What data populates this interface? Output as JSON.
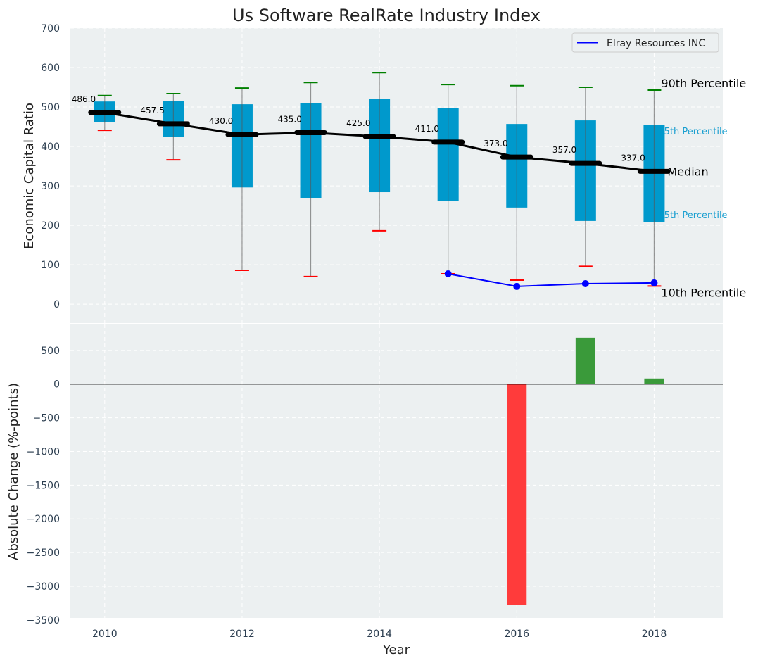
{
  "chart_data": [
    {
      "type": "box",
      "title": "Us Software RealRate Industry Index",
      "xlabel": "",
      "ylabel": "Economic Capital Ratio",
      "xlim": [
        2009.5,
        2019
      ],
      "ylim": [
        -48,
        700
      ],
      "yticks": [
        0,
        100,
        200,
        300,
        400,
        500,
        600,
        700
      ],
      "grid": true,
      "boxes": [
        {
          "year": 2010,
          "p10": 441,
          "p25": 462,
          "median": 486.0,
          "p75": 514,
          "p90": 529,
          "label": "486.0"
        },
        {
          "year": 2011,
          "p10": 366,
          "p25": 425,
          "median": 457.5,
          "p75": 516,
          "p90": 534,
          "label": "457.5"
        },
        {
          "year": 2012,
          "p10": 86,
          "p25": 296,
          "median": 430.0,
          "p75": 507,
          "p90": 548,
          "label": "430.0"
        },
        {
          "year": 2013,
          "p10": 70,
          "p25": 268,
          "median": 435.0,
          "p75": 509,
          "p90": 562,
          "label": "435.0"
        },
        {
          "year": 2014,
          "p10": 186,
          "p25": 284,
          "median": 425.0,
          "p75": 521,
          "p90": 587,
          "label": "425.0"
        },
        {
          "year": 2015,
          "p10": 77,
          "p25": 262,
          "median": 411.0,
          "p75": 498,
          "p90": 557,
          "label": "411.0"
        },
        {
          "year": 2016,
          "p10": 61,
          "p25": 245,
          "median": 373.0,
          "p75": 457,
          "p90": 554,
          "label": "373.0"
        },
        {
          "year": 2017,
          "p10": 96,
          "p25": 211,
          "median": 357.0,
          "p75": 466,
          "p90": 550,
          "label": "357.0"
        },
        {
          "year": 2018,
          "p10": 46,
          "p25": 209,
          "median": 337.0,
          "p75": 455,
          "p90": 543,
          "label": "337.0"
        }
      ],
      "series": [
        {
          "name": "Elray Resources INC",
          "color": "#0000ff",
          "x": [
            2015,
            2016,
            2017,
            2018
          ],
          "values": [
            77,
            45,
            52,
            54
          ]
        }
      ],
      "legend": {
        "placement": "top-right",
        "entries": [
          "Elray Resources INC"
        ]
      },
      "annotations": {
        "p90": "90th Percentile",
        "p75": "75th Percentile",
        "median": "Median",
        "p25": "25th Percentile",
        "p10": "10th Percentile"
      },
      "colors": {
        "box": "#0099cc",
        "median": "#000000",
        "p90_cap": "#008000",
        "p10_cap": "#ff0000",
        "background": "#ecf0f1"
      }
    },
    {
      "type": "bar",
      "xlabel": "Year",
      "ylabel": "Absolute Change (%-points)",
      "xlim": [
        2009.5,
        2019
      ],
      "ylim": [
        -3470,
        885
      ],
      "yticks": [
        500,
        0,
        -500,
        -1000,
        -1500,
        -2000,
        -2500,
        -3000,
        -3500
      ],
      "xticks": [
        2010,
        2012,
        2014,
        2016,
        2018
      ],
      "grid": true,
      "categories": [
        2016,
        2017,
        2018
      ],
      "values": [
        -3280,
        688,
        83
      ],
      "colors": {
        "positive": "#3a9a3a",
        "negative": "#ff3b3b"
      }
    }
  ]
}
